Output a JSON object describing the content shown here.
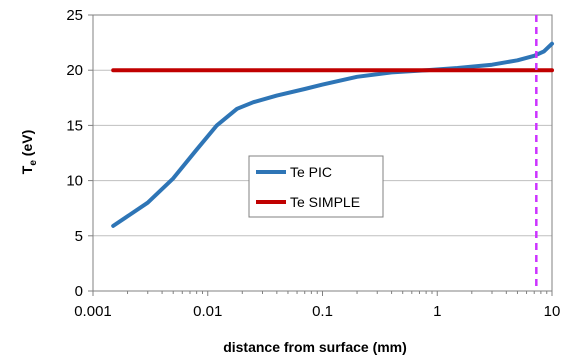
{
  "chart_data": {
    "type": "line",
    "xlabel": "distance from surface (mm)",
    "ylabel_main": "T",
    "ylabel_sub": "e",
    "ylabel_tail": " (eV)",
    "x_scale": "log",
    "xlim": [
      0.001,
      10
    ],
    "ylim": [
      0,
      25
    ],
    "x_tick_labels": [
      "0.001",
      "0.01",
      "0.1",
      "1",
      "10"
    ],
    "x_tick_values": [
      0.001,
      0.01,
      0.1,
      1,
      10
    ],
    "y_tick_labels": [
      "0",
      "5",
      "10",
      "15",
      "20",
      "25"
    ],
    "y_tick_values": [
      0,
      5,
      10,
      15,
      20,
      25
    ],
    "grid": "horizontal",
    "legend_position": "center",
    "series": [
      {
        "name": "Te PIC",
        "color": "#2e75b6",
        "x": [
          0.0015,
          0.003,
          0.005,
          0.008,
          0.012,
          0.018,
          0.025,
          0.04,
          0.07,
          0.1,
          0.2,
          0.4,
          0.8,
          1.5,
          3,
          5,
          7,
          8.5,
          10
        ],
        "y": [
          5.9,
          8.0,
          10.2,
          12.8,
          15.0,
          16.5,
          17.1,
          17.7,
          18.3,
          18.7,
          19.4,
          19.8,
          20.0,
          20.2,
          20.5,
          20.9,
          21.3,
          21.7,
          22.4
        ]
      },
      {
        "name": "Te SIMPLE",
        "color": "#c00000",
        "x": [
          0.0015,
          10
        ],
        "y": [
          20.0,
          20.0
        ]
      }
    ],
    "reference_line": {
      "x": 7.3,
      "color": "#cc33ff",
      "style": "dashed"
    }
  }
}
